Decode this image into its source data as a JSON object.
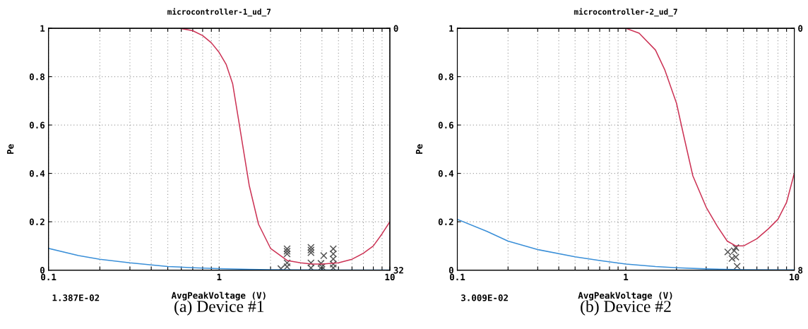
{
  "chart_data": [
    {
      "type": "line",
      "title": "microcontroller-1_ud_7",
      "xlabel": "AvgPeakVoltage (V)",
      "ylabel": "Pe",
      "log": "x",
      "grid": true,
      "xlim": [
        0.1,
        10
      ],
      "xticks": [
        0.1,
        {
          "value": 0.2,
          "label": null
        },
        {
          "value": 0.3,
          "label": null
        },
        {
          "value": 0.4,
          "label": null
        },
        {
          "value": 0.5,
          "label": null
        },
        {
          "value": 0.6,
          "label": null
        },
        {
          "value": 0.7,
          "label": null
        },
        {
          "value": 0.8,
          "label": null
        },
        {
          "value": 0.9,
          "label": null
        },
        1,
        {
          "value": 2,
          "label": null
        },
        {
          "value": 3,
          "label": null
        },
        {
          "value": 4,
          "label": null
        },
        {
          "value": 5,
          "label": null
        },
        {
          "value": 6,
          "label": null
        },
        {
          "value": 7,
          "label": null
        },
        {
          "value": 8,
          "label": null
        },
        {
          "value": 9,
          "label": null
        },
        10
      ],
      "ylim": [
        0,
        1
      ],
      "yticks": [
        0,
        0.2,
        0.4,
        0.6,
        0.8,
        1
      ],
      "y2lim": [
        32,
        0
      ],
      "y2ticks": [
        0,
        32
      ],
      "annotations": [
        "1.387E-02",
        "(a) Device #1"
      ],
      "series": [
        {
          "color": "#cc3355",
          "x": [
            0.59,
            0.7,
            0.8,
            0.9,
            1.0,
            1.1,
            1.2,
            1.3,
            1.4,
            1.5,
            1.7,
            2.0,
            2.5,
            3,
            3.5,
            4,
            5,
            6,
            7,
            8,
            9,
            10
          ],
          "values": [
            1,
            0.99,
            0.97,
            0.94,
            0.9,
            0.85,
            0.77,
            0.62,
            0.48,
            0.35,
            0.19,
            0.09,
            0.04,
            0.03,
            0.025,
            0.025,
            0.03,
            0.045,
            0.07,
            0.1,
            0.15,
            0.2
          ]
        },
        {
          "color": "#3a8fd8",
          "x": [
            0.1,
            0.15,
            0.2,
            0.3,
            0.5,
            0.7,
            1,
            1.5,
            2,
            3,
            5,
            10
          ],
          "values": [
            0.09,
            0.06,
            0.045,
            0.03,
            0.015,
            0.01,
            0.006,
            0.003,
            0.002,
            0.001,
            0,
            0
          ]
        },
        {
          "type": "scatter",
          "marker": "cross",
          "color": "#555555",
          "x": [
            2.5,
            2.5,
            2.5,
            2.5,
            2.5,
            2.3,
            3.45,
            3.45,
            3.45,
            3.45,
            3.45,
            4.1,
            3.95,
            4.0,
            4.0,
            4.66,
            4.66,
            4.66,
            4.66,
            4.66
          ],
          "values": [
            0.088,
            0.078,
            0.067,
            0.03,
            0.014,
            0.006,
            0.094,
            0.083,
            0.072,
            0.03,
            0.009,
            0.06,
            0.028,
            0.014,
            0.003,
            0.088,
            0.067,
            0.046,
            0.025,
            0.009
          ]
        }
      ]
    },
    {
      "type": "line",
      "title": "microcontroller-2_ud_7",
      "xlabel": "AvgPeakVoltage (V)",
      "ylabel": "Pe",
      "log": "x",
      "grid": true,
      "xlim": [
        0.1,
        10
      ],
      "xticks": [
        0.1,
        {
          "value": 0.2,
          "label": null
        },
        {
          "value": 0.3,
          "label": null
        },
        {
          "value": 0.4,
          "label": null
        },
        {
          "value": 0.5,
          "label": null
        },
        {
          "value": 0.6,
          "label": null
        },
        {
          "value": 0.7,
          "label": null
        },
        {
          "value": 0.8,
          "label": null
        },
        {
          "value": 0.9,
          "label": null
        },
        1,
        {
          "value": 2,
          "label": null
        },
        {
          "value": 3,
          "label": null
        },
        {
          "value": 4,
          "label": null
        },
        {
          "value": 5,
          "label": null
        },
        {
          "value": 6,
          "label": null
        },
        {
          "value": 7,
          "label": null
        },
        {
          "value": 8,
          "label": null
        },
        {
          "value": 9,
          "label": null
        },
        10
      ],
      "ylim": [
        0,
        1
      ],
      "yticks": [
        0,
        0.2,
        0.4,
        0.6,
        0.8,
        1
      ],
      "y2lim": [
        8,
        0
      ],
      "y2ticks": [
        0,
        8
      ],
      "annotations": [
        "3.009E-02",
        "(b) Device #2"
      ],
      "series": [
        {
          "color": "#cc3355",
          "x": [
            0.9,
            1.0,
            1.2,
            1.5,
            1.7,
            2,
            2.2,
            2.5,
            3,
            3.5,
            4,
            4.5,
            5,
            6,
            7,
            8,
            9,
            10
          ],
          "values": [
            1,
            1,
            0.98,
            0.91,
            0.83,
            0.69,
            0.56,
            0.39,
            0.26,
            0.18,
            0.12,
            0.1,
            0.1,
            0.13,
            0.17,
            0.21,
            0.28,
            0.4
          ]
        },
        {
          "color": "#3a8fd8",
          "x": [
            0.1,
            0.15,
            0.2,
            0.3,
            0.5,
            0.7,
            1,
            1.5,
            2,
            3,
            5,
            10
          ],
          "values": [
            0.21,
            0.16,
            0.12,
            0.085,
            0.055,
            0.04,
            0.025,
            0.015,
            0.01,
            0.005,
            0.002,
            0.001
          ]
        },
        {
          "type": "scatter",
          "marker": "cross",
          "color": "#555555",
          "x": [
            4.03,
            4.27,
            4.5,
            4.4,
            4.5,
            4.58
          ],
          "values": [
            0.075,
            0.048,
            0.054,
            0.08,
            0.093,
            0.016
          ]
        }
      ]
    }
  ]
}
